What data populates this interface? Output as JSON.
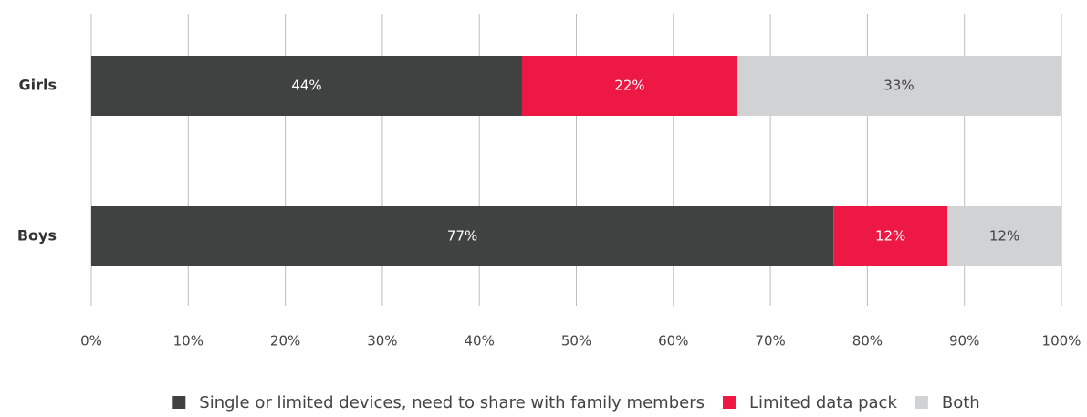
{
  "chart_data": {
    "type": "stacked-barh",
    "categories": [
      "Girls",
      "Boys"
    ],
    "series": [
      {
        "name": "Single or limited devices, need to share with family members",
        "color": "#404141",
        "values": [
          44.4,
          76.5
        ],
        "value_labels": [
          "44%",
          "77%"
        ]
      },
      {
        "name": "Limited data pack",
        "color": "#ee1844",
        "values": [
          22.2,
          11.75
        ],
        "value_labels": [
          "22%",
          "12%"
        ]
      },
      {
        "name": "Both",
        "color": "#d1d2d4",
        "values": [
          33.3,
          11.75
        ],
        "value_labels": [
          "33%",
          "12%"
        ]
      }
    ],
    "xlim": [
      0,
      100
    ],
    "xticks": [
      {
        "value": 0,
        "label": "0%"
      },
      {
        "value": 10,
        "label": "10%"
      },
      {
        "value": 20,
        "label": "20%"
      },
      {
        "value": 30,
        "label": "30%"
      },
      {
        "value": 40,
        "label": "40%"
      },
      {
        "value": 50,
        "label": "50%"
      },
      {
        "value": 60,
        "label": "60%"
      },
      {
        "value": 70,
        "label": "70%"
      },
      {
        "value": 80,
        "label": "80%"
      },
      {
        "value": 90,
        "label": "90%"
      },
      {
        "value": 100,
        "label": "100%"
      }
    ],
    "grid": true,
    "legend": "bottom"
  }
}
